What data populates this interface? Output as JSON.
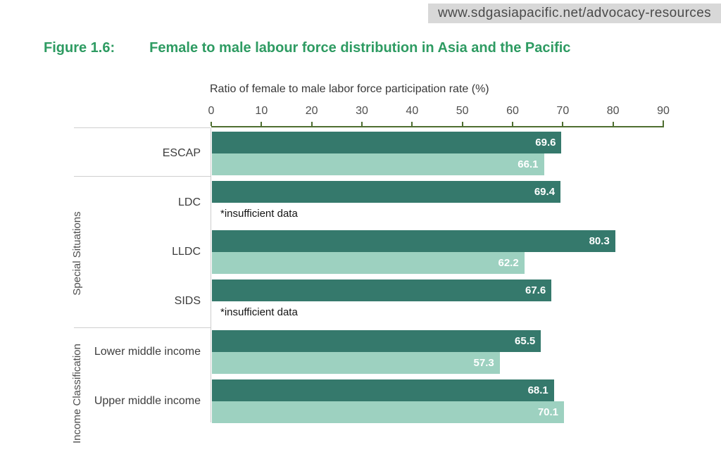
{
  "banner": {
    "url": "www.sdgasiapacific.net/advocacy-resources"
  },
  "figure": {
    "label": "Figure 1.6:",
    "title": "Female to male labour force distribution in Asia and the Pacific"
  },
  "colors": {
    "title_green": "#2e9b62",
    "axis_green": "#4e6e30",
    "bar_dark": "#35796c",
    "bar_light": "#9dd1c0",
    "banner_bg": "#d8d8d8"
  },
  "chart_data": {
    "type": "bar",
    "orientation": "horizontal",
    "title": "Female to male labour force distribution in Asia and the Pacific",
    "xlabel": "Ratio of female to male labor force participation rate (%)",
    "ylabel": "",
    "xlim": [
      0,
      90
    ],
    "xticks": [
      0,
      10,
      20,
      30,
      40,
      50,
      60,
      70,
      80,
      90
    ],
    "grid": false,
    "legend": false,
    "insufficient_label": "*insufficient data",
    "series_colors": {
      "dark": "#35796c",
      "light": "#9dd1c0"
    },
    "groups": [
      {
        "label": "",
        "rows": [
          {
            "category": "ESCAP",
            "dark": 69.6,
            "light": 66.1
          }
        ]
      },
      {
        "label": "Special Situations",
        "rows": [
          {
            "category": "LDC",
            "dark": 69.4,
            "light": null
          },
          {
            "category": "LLDC",
            "dark": 80.3,
            "light": 62.2
          },
          {
            "category": "SIDS",
            "dark": 67.6,
            "light": null
          }
        ]
      },
      {
        "label": "Income Classification",
        "rows": [
          {
            "category": "Lower middle income",
            "dark": 65.5,
            "light": 57.3
          },
          {
            "category": "Upper middle income",
            "dark": 68.1,
            "light": 70.1
          }
        ]
      }
    ]
  }
}
